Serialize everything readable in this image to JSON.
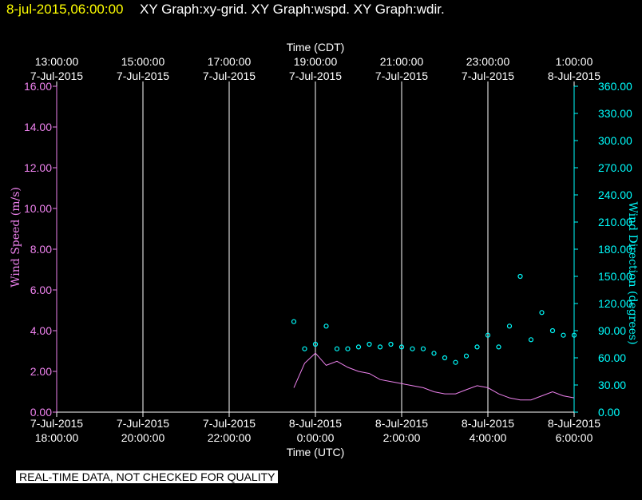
{
  "header": {
    "date_label": "8-jul-2015,06:00:00",
    "graphs_label": "XY Graph:xy-grid.  XY Graph:wspd.  XY Graph:wdir."
  },
  "disclaimer": "REAL-TIME DATA, NOT CHECKED FOR QUALITY",
  "colors": {
    "background": "#000000",
    "wind_speed": "#ee82ee",
    "wind_direction": "#00ffff",
    "date_header": "#ffff00",
    "axis_text": "#ffffff"
  },
  "chart_data": {
    "type": "line",
    "grid": true,
    "x_top": {
      "title": "Time (CDT)",
      "ticks": [
        {
          "time": "13:00:00",
          "date": "7-Jul-2015"
        },
        {
          "time": "15:00:00",
          "date": "7-Jul-2015"
        },
        {
          "time": "17:00:00",
          "date": "7-Jul-2015"
        },
        {
          "time": "19:00:00",
          "date": "7-Jul-2015"
        },
        {
          "time": "21:00:00",
          "date": "7-Jul-2015"
        },
        {
          "time": "23:00:00",
          "date": "7-Jul-2015"
        },
        {
          "time": "1:00:00",
          "date": "8-Jul-2015"
        }
      ]
    },
    "x_bottom": {
      "title": "Time (UTC)",
      "range": [
        "2015-07-07 18:00",
        "2015-07-08 06:00"
      ],
      "ticks": [
        {
          "date": "7-Jul-2015",
          "time": "18:00:00"
        },
        {
          "date": "7-Jul-2015",
          "time": "20:00:00"
        },
        {
          "date": "7-Jul-2015",
          "time": "22:00:00"
        },
        {
          "date": "8-Jul-2015",
          "time": "0:00:00"
        },
        {
          "date": "8-Jul-2015",
          "time": "2:00:00"
        },
        {
          "date": "8-Jul-2015",
          "time": "4:00:00"
        },
        {
          "date": "8-Jul-2015",
          "time": "6:00:00"
        }
      ]
    },
    "y_left": {
      "title": "Wind Speed (m/s)",
      "range": [
        0,
        16
      ],
      "ticks": [
        "0.00",
        "2.00",
        "4.00",
        "6.00",
        "8.00",
        "10.00",
        "12.00",
        "14.00",
        "16.00"
      ]
    },
    "y_right": {
      "title": "Wind Direction (degrees)",
      "range": [
        0,
        360
      ],
      "ticks": [
        "0.00",
        "30.00",
        "60.00",
        "90.00",
        "120.00",
        "150.00",
        "180.00",
        "210.00",
        "240.00",
        "270.00",
        "300.00",
        "330.00",
        "360.00"
      ]
    },
    "series": [
      {
        "name": "Wind Speed",
        "axis": "left",
        "style": "line",
        "x": [
          "2015-07-07 23:30",
          "2015-07-07 23:45",
          "2015-07-08 00:00",
          "2015-07-08 00:15",
          "2015-07-08 00:30",
          "2015-07-08 00:45",
          "2015-07-08 01:00",
          "2015-07-08 01:15",
          "2015-07-08 01:30",
          "2015-07-08 01:45",
          "2015-07-08 02:00",
          "2015-07-08 02:15",
          "2015-07-08 02:30",
          "2015-07-08 02:45",
          "2015-07-08 03:00",
          "2015-07-08 03:15",
          "2015-07-08 03:30",
          "2015-07-08 03:45",
          "2015-07-08 04:00",
          "2015-07-08 04:15",
          "2015-07-08 04:30",
          "2015-07-08 04:45",
          "2015-07-08 05:00",
          "2015-07-08 05:15",
          "2015-07-08 05:30",
          "2015-07-08 05:45",
          "2015-07-08 06:00"
        ],
        "values": [
          1.2,
          2.4,
          2.9,
          2.3,
          2.5,
          2.2,
          2.0,
          1.9,
          1.6,
          1.5,
          1.4,
          1.3,
          1.2,
          1.0,
          0.9,
          0.9,
          1.1,
          1.3,
          1.2,
          0.9,
          0.7,
          0.6,
          0.6,
          0.8,
          1.0,
          0.8,
          0.7
        ]
      },
      {
        "name": "Wind Direction",
        "axis": "right",
        "style": "markers",
        "x": [
          "2015-07-07 23:30",
          "2015-07-07 23:45",
          "2015-07-08 00:00",
          "2015-07-08 00:15",
          "2015-07-08 00:30",
          "2015-07-08 00:45",
          "2015-07-08 01:00",
          "2015-07-08 01:15",
          "2015-07-08 01:30",
          "2015-07-08 01:45",
          "2015-07-08 02:00",
          "2015-07-08 02:15",
          "2015-07-08 02:30",
          "2015-07-08 02:45",
          "2015-07-08 03:00",
          "2015-07-08 03:15",
          "2015-07-08 03:30",
          "2015-07-08 03:45",
          "2015-07-08 04:00",
          "2015-07-08 04:15",
          "2015-07-08 04:30",
          "2015-07-08 04:45",
          "2015-07-08 05:00",
          "2015-07-08 05:15",
          "2015-07-08 05:30",
          "2015-07-08 05:45",
          "2015-07-08 06:00"
        ],
        "values": [
          100,
          70,
          75,
          95,
          70,
          70,
          72,
          75,
          72,
          75,
          72,
          70,
          70,
          65,
          60,
          55,
          62,
          72,
          85,
          72,
          95,
          150,
          80,
          110,
          90,
          85,
          85
        ]
      }
    ]
  }
}
